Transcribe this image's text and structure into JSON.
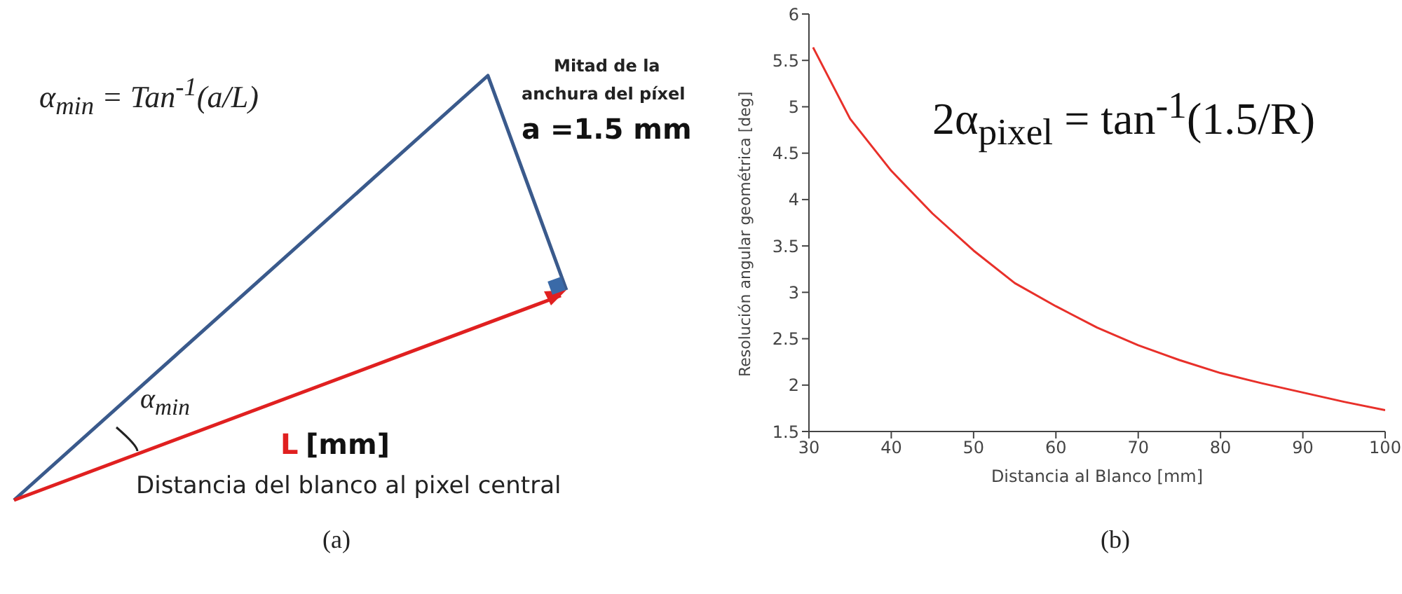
{
  "chart_data": [
    {
      "type": "other",
      "title": "(a)",
      "annotations": [
        "α$_{min}$ = Tan$^{-1}$(a/L)",
        "Mitad de la",
        "anchura del píxel",
        "a =1.5 mm",
        "α$_{min}$",
        "L",
        "[mm]",
        "Distancia del blanco al pixel central"
      ]
    },
    {
      "type": "line",
      "title": "(b)",
      "xlabel": "Distancia al Blanco [mm]",
      "ylabel": "Resolución angular geométrica [deg]",
      "annotations": [
        "2α$_{pixel}$ = tan$^{-1}$(1.5/R)"
      ],
      "xlim": [
        30,
        100
      ],
      "xticks": [
        30,
        40,
        50,
        60,
        70,
        80,
        90,
        100
      ],
      "ylim": [
        1.5,
        6
      ],
      "yticks": [
        1.5,
        2,
        2.5,
        3,
        3.5,
        4,
        4.5,
        5,
        5.5,
        6
      ],
      "marker": "none",
      "grid": false,
      "legend": false,
      "series": [
        {
          "color": "#e8302a",
          "x": [
            30.5,
            35,
            40,
            45,
            50,
            55,
            60,
            65,
            70,
            75,
            80,
            85,
            90,
            95,
            100
          ],
          "values": [
            5.64,
            4.87,
            4.31,
            3.85,
            3.45,
            3.1,
            2.85,
            2.62,
            2.43,
            2.27,
            2.13,
            2.02,
            1.92,
            1.82,
            1.73
          ]
        }
      ]
    }
  ]
}
